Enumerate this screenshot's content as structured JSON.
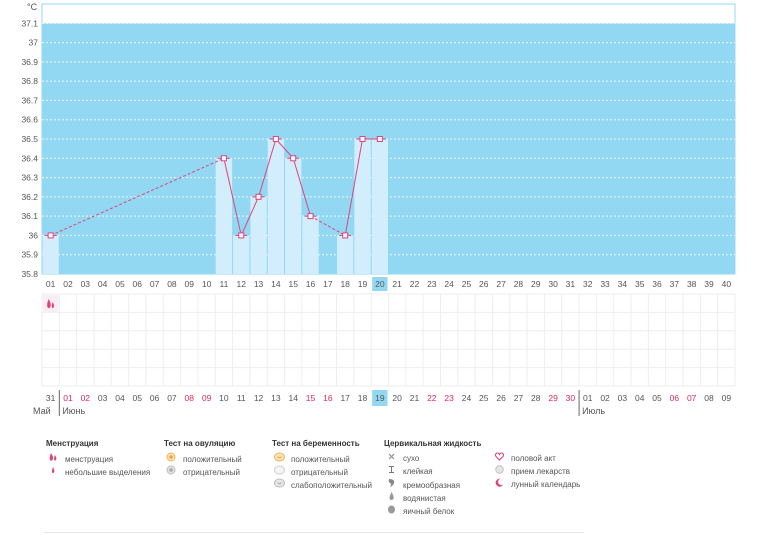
{
  "chart_data": {
    "type": "bar",
    "unit_label": "°C",
    "ylim": [
      35.8,
      37.2
    ],
    "y_ticks": [
      "37.1",
      "37",
      "36.9",
      "36.8",
      "36.7",
      "36.6",
      "36.5",
      "36.4",
      "36.3",
      "36.2",
      "36.1",
      "36",
      "35.9",
      "35.8"
    ],
    "grid": true,
    "cycle_days": [
      "01",
      "02",
      "03",
      "04",
      "05",
      "06",
      "07",
      "08",
      "09",
      "10",
      "11",
      "12",
      "13",
      "14",
      "15",
      "16",
      "17",
      "18",
      "19",
      "20",
      "21",
      "22",
      "23",
      "24",
      "25",
      "26",
      "27",
      "28",
      "29",
      "30",
      "31",
      "32",
      "33",
      "34",
      "35",
      "36",
      "37",
      "38",
      "39",
      "40"
    ],
    "current_day_index": 19,
    "series": [
      {
        "points": [
          {
            "day": 1,
            "value": 36.0
          },
          {
            "day": 11,
            "value": 36.4
          },
          {
            "day": 12,
            "value": 36.0
          },
          {
            "day": 13,
            "value": 36.2
          },
          {
            "day": 14,
            "value": 36.5
          },
          {
            "day": 15,
            "value": 36.4
          },
          {
            "day": 16,
            "value": 36.1
          },
          {
            "day": 18,
            "value": 36.0
          },
          {
            "day": 19,
            "value": 36.5
          },
          {
            "day": 20,
            "value": 36.5
          }
        ],
        "dashed_gaps": [
          [
            1,
            11
          ],
          [
            16,
            18
          ]
        ]
      }
    ],
    "menstruation_days": [
      1
    ],
    "dates": [
      {
        "d": "31",
        "red": false
      },
      {
        "d": "01",
        "red": true
      },
      {
        "d": "02",
        "red": true
      },
      {
        "d": "03",
        "red": false
      },
      {
        "d": "04",
        "red": false
      },
      {
        "d": "05",
        "red": false
      },
      {
        "d": "06",
        "red": false
      },
      {
        "d": "07",
        "red": false
      },
      {
        "d": "08",
        "red": true
      },
      {
        "d": "09",
        "red": true
      },
      {
        "d": "10",
        "red": false
      },
      {
        "d": "11",
        "red": false
      },
      {
        "d": "12",
        "red": false
      },
      {
        "d": "13",
        "red": false
      },
      {
        "d": "14",
        "red": false
      },
      {
        "d": "15",
        "red": true
      },
      {
        "d": "16",
        "red": true
      },
      {
        "d": "17",
        "red": false
      },
      {
        "d": "18",
        "red": false
      },
      {
        "d": "19",
        "red": false
      },
      {
        "d": "20",
        "red": false
      },
      {
        "d": "21",
        "red": false
      },
      {
        "d": "22",
        "red": true
      },
      {
        "d": "23",
        "red": true
      },
      {
        "d": "24",
        "red": false
      },
      {
        "d": "25",
        "red": false
      },
      {
        "d": "26",
        "red": false
      },
      {
        "d": "27",
        "red": false
      },
      {
        "d": "28",
        "red": false
      },
      {
        "d": "29",
        "red": true
      },
      {
        "d": "30",
        "red": true
      },
      {
        "d": "01",
        "red": false
      },
      {
        "d": "02",
        "red": false
      },
      {
        "d": "03",
        "red": false
      },
      {
        "d": "04",
        "red": false
      },
      {
        "d": "05",
        "red": false
      },
      {
        "d": "06",
        "red": true
      },
      {
        "d": "07",
        "red": true
      },
      {
        "d": "08",
        "red": false
      },
      {
        "d": "09",
        "red": false
      }
    ],
    "months": [
      {
        "label": "Май",
        "start_index": 0
      },
      {
        "label": "Июнь",
        "start_index": 1
      },
      {
        "label": "Июль",
        "start_index": 31
      }
    ],
    "colors": {
      "background_band": "#93d8f3",
      "bar": "#d2edfb",
      "line": "#e0447a",
      "highlight": "#93d8f3",
      "red_date": "#e0295e"
    }
  },
  "legend": {
    "groups": [
      {
        "title": "Менструация",
        "items": [
          {
            "icon": "drop-pair-icon",
            "label": "менструация"
          },
          {
            "icon": "drop-small-icon",
            "label": "небольшие выделения"
          }
        ]
      },
      {
        "title": "Тест на овуляцию",
        "items": [
          {
            "icon": "ovulation-positive-icon",
            "label": "положительный"
          },
          {
            "icon": "ovulation-negative-icon",
            "label": "отрицательный"
          }
        ]
      },
      {
        "title": "Тест на беременность",
        "items": [
          {
            "icon": "pregnancy-positive-icon",
            "label": "положительный"
          },
          {
            "icon": "pregnancy-negative-icon",
            "label": "отрицательный"
          },
          {
            "icon": "pregnancy-weak-icon",
            "label": "слабоположительный"
          }
        ]
      },
      {
        "title": "Цервикальная жидкость",
        "items": [
          {
            "icon": "cross-icon",
            "label": "сухо"
          },
          {
            "icon": "t-bar-icon",
            "label": "клейкая"
          },
          {
            "icon": "creamy-icon",
            "label": "кремообразная"
          },
          {
            "icon": "watery-drop-icon",
            "label": "водянистая"
          },
          {
            "icon": "egg-white-icon",
            "label": "яичный белок"
          }
        ]
      },
      {
        "title": "",
        "items": [
          {
            "icon": "heart-icon",
            "label": "половой акт"
          },
          {
            "icon": "pill-icon",
            "label": "прием лекарств"
          },
          {
            "icon": "moon-icon",
            "label": "лунный календарь"
          }
        ]
      }
    ]
  }
}
